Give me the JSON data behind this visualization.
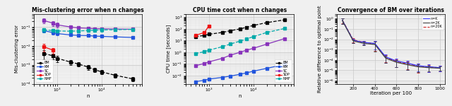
{
  "fig1": {
    "title": "Mis-clustering error when n changes",
    "xlabel": "n",
    "ylabel": "Mis-clustering error",
    "n_values": [
      500,
      800,
      1000,
      2000,
      3000,
      5000,
      7000,
      10000,
      20000,
      50000
    ],
    "BM_y": [
      0.004,
      0.003,
      0.0022,
      0.0014,
      0.0011,
      0.00075,
      0.00055,
      0.00042,
      0.00028,
      0.00018
    ],
    "BM_yerr": [
      0.002,
      0.001,
      0.0008,
      0.0004,
      0.0003,
      0.0002,
      0.00015,
      0.0001,
      7e-05,
      5e-05
    ],
    "KM_y": [
      0.065,
      0.05,
      0.045,
      0.038,
      0.036,
      0.035,
      0.033,
      0.032,
      0.03,
      0.028
    ],
    "KM_yerr": [
      0.015,
      0.01,
      0.008,
      0.005,
      0.004,
      0.004,
      0.003,
      0.003,
      0.002,
      0.002
    ],
    "SC_y": [
      0.22,
      0.16,
      0.13,
      0.1,
      0.09,
      0.085,
      0.082,
      0.08,
      0.078,
      0.076
    ],
    "SC_yerr": [
      0.07,
      0.05,
      0.04,
      0.025,
      0.02,
      0.015,
      0.012,
      0.01,
      0.01,
      0.008
    ],
    "SDP_y": [
      0.009,
      0.006,
      null,
      null,
      null,
      null,
      null,
      null,
      null,
      null
    ],
    "SDP_yerr": [
      0.004,
      0.002,
      null,
      null,
      null,
      null,
      null,
      null,
      null,
      null
    ],
    "NMF_y": [
      0.07,
      0.065,
      0.062,
      0.06,
      0.062,
      0.065,
      0.068,
      0.07,
      0.072,
      0.075
    ],
    "NMF_yerr": [
      0.018,
      0.015,
      0.012,
      0.01,
      0.01,
      0.01,
      0.01,
      0.012,
      0.012,
      0.015
    ],
    "xlim": [
      300,
      80000
    ],
    "ylim": [
      0.0001,
      0.5
    ],
    "legend_loc": "lower left"
  },
  "fig2": {
    "title": "CPU time cost when n changes",
    "xlabel": "n",
    "ylabel": "CPU time [seconds]",
    "n_values": [
      500,
      800,
      1000,
      2000,
      3000,
      5000,
      7000,
      10000,
      20000,
      50000
    ],
    "BM_y": [
      22,
      28,
      35,
      50,
      70,
      100,
      140,
      200,
      350,
      600
    ],
    "BM_yerr": [
      4,
      5,
      6,
      9,
      12,
      18,
      25,
      40,
      70,
      120
    ],
    "KM_y": [
      0.003,
      0.004,
      0.005,
      0.007,
      0.009,
      0.013,
      0.017,
      0.024,
      0.042,
      0.09
    ],
    "KM_yerr": [
      0.0005,
      0.001,
      0.001,
      0.001,
      0.001,
      0.002,
      0.003,
      0.004,
      0.007,
      0.015
    ],
    "SC_y": [
      0.07,
      0.11,
      0.15,
      0.3,
      0.55,
      1.0,
      1.5,
      2.2,
      5.0,
      15.0
    ],
    "SC_yerr": [
      0.015,
      0.02,
      0.03,
      0.06,
      0.1,
      0.2,
      0.3,
      0.5,
      1.0,
      3.0
    ],
    "SDP_y": [
      28,
      50,
      180,
      null,
      null,
      null,
      null,
      null,
      null,
      null
    ],
    "SDP_yerr": [
      5,
      10,
      40,
      null,
      null,
      null,
      null,
      null,
      null,
      null
    ],
    "NMF_y": [
      0.8,
      1.1,
      1.5,
      3.0,
      5.0,
      9.0,
      14,
      22,
      50,
      110
    ],
    "NMF_yerr": [
      0.12,
      0.18,
      0.25,
      0.6,
      0.9,
      1.5,
      2.5,
      4.5,
      10,
      22
    ],
    "xlim": [
      300,
      80000
    ],
    "ylim": [
      0.002,
      2000
    ],
    "legend_loc": "lower right"
  },
  "fig3": {
    "title": "Convergence of BM over iterations",
    "xlabel": "Iteration per 100",
    "ylabel": "Relative difference to optimal point",
    "iter_values": [
      100,
      200,
      300,
      400,
      500,
      600,
      700,
      800,
      900,
      1000
    ],
    "nK_y": [
      0.7,
      0.008,
      0.005,
      0.004,
      0.0002,
      8e-05,
      5e-05,
      2.8e-05,
      2.2e-05,
      1.8e-05
    ],
    "nK_yerr": [
      0.4,
      0.004,
      0.002,
      0.003,
      0.00015,
      6e-05,
      4e-05,
      2e-05,
      1.5e-05,
      1e-05
    ],
    "n2K_y": [
      0.65,
      0.007,
      0.004,
      0.0032,
      0.00015,
      6e-05,
      3.5e-05,
      2.2e-05,
      1.8e-05,
      1.6e-05
    ],
    "n2K_yerr": [
      0.35,
      0.003,
      0.0015,
      0.0025,
      0.0001,
      4e-05,
      2.5e-05,
      1.5e-05,
      1e-05,
      7e-06
    ],
    "n20K_y": [
      0.72,
      0.009,
      0.005,
      0.0038,
      0.00018,
      7e-05,
      4.2e-05,
      2.6e-05,
      2e-05,
      1.8e-05
    ],
    "n20K_yerr": [
      0.38,
      0.004,
      0.002,
      0.003,
      0.00012,
      5e-05,
      3e-05,
      2e-05,
      1.3e-05,
      1e-05
    ],
    "xlim": [
      50,
      1050
    ],
    "ylim": [
      5e-07,
      3.0
    ],
    "xticks": [
      200,
      400,
      600,
      800,
      1000
    ]
  },
  "colors": {
    "BM": "#000000",
    "KM": "#2255dd",
    "SC": "#8833bb",
    "SDP": "#ee1111",
    "NMF": "#00aaaa",
    "nK": "#3333ff",
    "n2K": "#444444",
    "n20K": "#cc2222"
  },
  "bg_color": "#f0f0f0"
}
